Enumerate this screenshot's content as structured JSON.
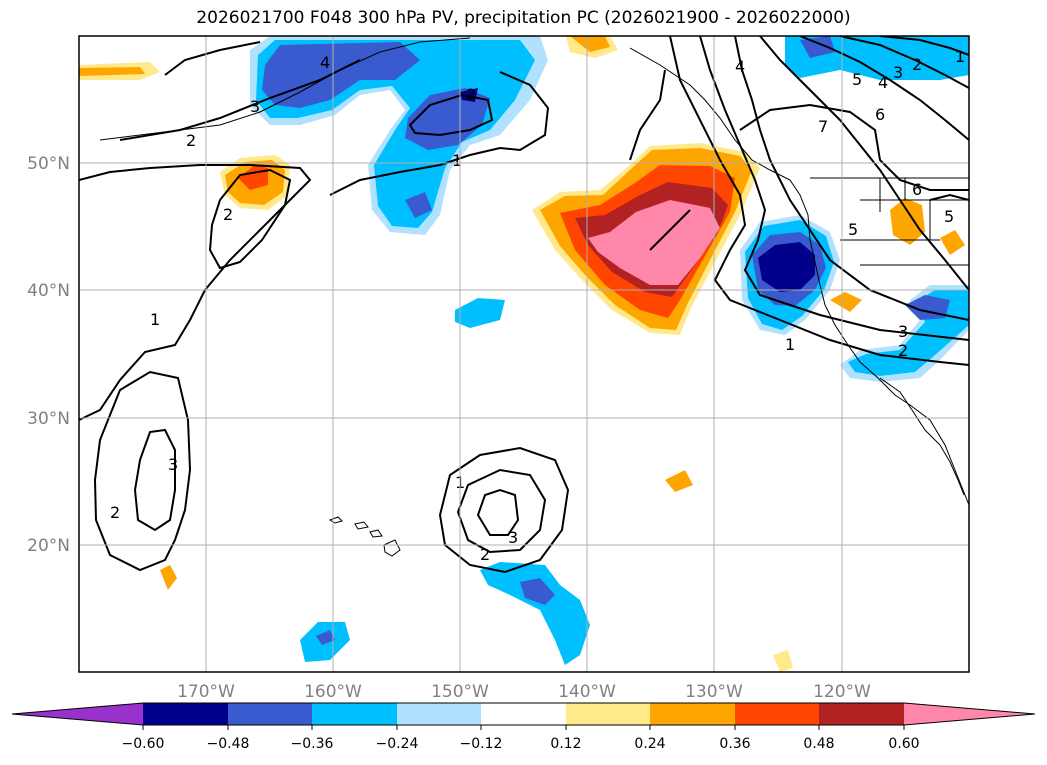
{
  "title": "2026021700 F048 300 hPa PV, precipitation PC (2026021900 - 2026022000)",
  "axes": {
    "lon_ticks": [
      "170°W",
      "160°W",
      "150°W",
      "140°W",
      "130°W",
      "120°W"
    ],
    "lat_ticks": [
      "50°N",
      "40°N",
      "30°N",
      "20°N"
    ],
    "lon_range": [
      -180,
      -110
    ],
    "lat_range": [
      10,
      60
    ]
  },
  "colorbar": {
    "ticks": [
      "−0.60",
      "−0.48",
      "−0.36",
      "−0.24",
      "−0.12",
      "0.12",
      "0.24",
      "0.36",
      "0.48",
      "0.60"
    ],
    "colors": [
      "#9932cc",
      "#00008b",
      "#3a5bd0",
      "#00bfff",
      "#b0e2ff",
      "#ffffff",
      "#ffe98a",
      "#ffa500",
      "#ff4500",
      "#b22222",
      "#ff88aa"
    ]
  },
  "contour_labels": [
    "4",
    "3",
    "2",
    "1",
    "2",
    "1",
    "2",
    "1",
    "3",
    "2",
    "1",
    "3",
    "2",
    "4",
    "7",
    "6",
    "5",
    "5",
    "4",
    "3",
    "2",
    "6",
    "5",
    "3",
    "2",
    "1"
  ]
}
